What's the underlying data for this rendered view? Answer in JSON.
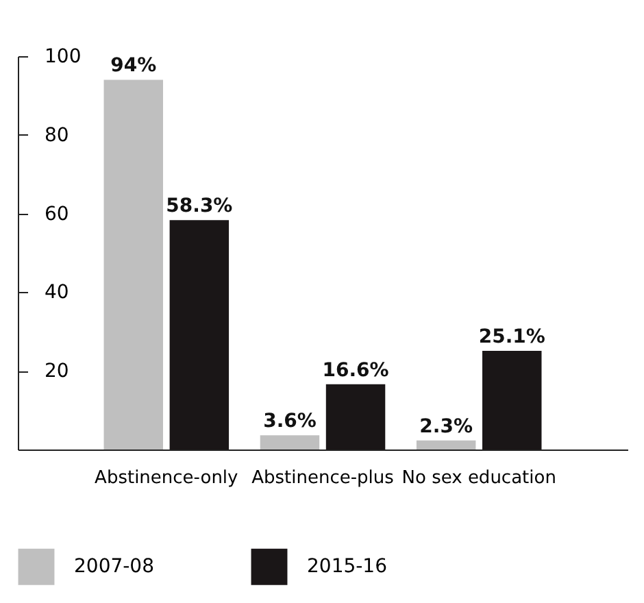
{
  "chart_data": {
    "type": "bar",
    "categories": [
      "Abstinence-only",
      "Abstinence-plus",
      "No sex education"
    ],
    "series": [
      {
        "name": "2007-08",
        "color": "#bfbfbf",
        "values": [
          94,
          3.6,
          2.3
        ],
        "value_labels": [
          "94%",
          "3.6%",
          "2.3%"
        ]
      },
      {
        "name": "2015-16",
        "color": "#1a1617",
        "values": [
          58.3,
          16.6,
          25.1
        ],
        "value_labels": [
          "58.3%",
          "16.6%",
          "25.1%"
        ]
      }
    ],
    "ylim": [
      0,
      100
    ],
    "yticks": [
      20,
      40,
      60,
      80,
      100
    ],
    "grid": false,
    "legend": "bottom"
  }
}
